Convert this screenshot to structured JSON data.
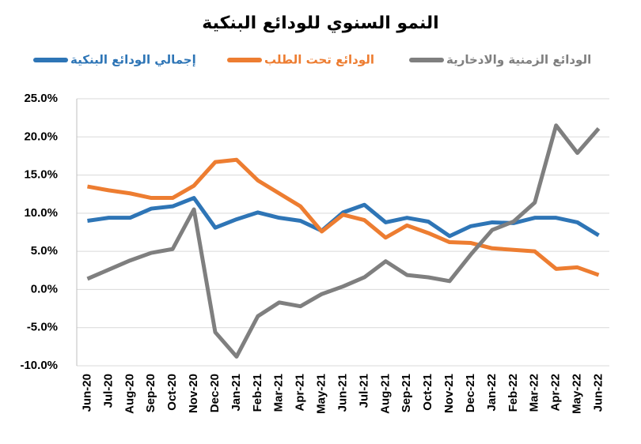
{
  "chart_data": {
    "type": "line",
    "title": "النمو السنوي للودائع البنكية",
    "categories": [
      "Jun-20",
      "Jul-20",
      "Aug-20",
      "Sep-20",
      "Oct-20",
      "Nov-20",
      "Dec-20",
      "Jan-21",
      "Feb-21",
      "Mar-21",
      "Apr-21",
      "May-21",
      "Jun-21",
      "Jul-21",
      "Aug-21",
      "Sep-21",
      "Oct-21",
      "Nov-21",
      "Dec-21",
      "Jan-22",
      "Feb-22",
      "Mar-22",
      "Apr-22",
      "May-22",
      "Jun-22"
    ],
    "series": [
      {
        "name": "إجمالي الودائع البنكية",
        "color": "#2e75b6",
        "values": [
          9.0,
          9.4,
          9.4,
          10.6,
          10.9,
          12.0,
          8.1,
          9.2,
          10.1,
          9.4,
          9.0,
          7.7,
          10.1,
          11.1,
          8.8,
          9.4,
          8.9,
          7.0,
          8.3,
          8.8,
          8.7,
          9.4,
          9.4,
          8.8,
          7.1
        ]
      },
      {
        "name": "الودائع تحت الطلب",
        "color": "#ed7d31",
        "values": [
          13.5,
          13.0,
          12.6,
          12.0,
          12.0,
          13.6,
          16.7,
          17.0,
          14.3,
          12.6,
          10.9,
          7.6,
          9.8,
          9.1,
          6.8,
          8.4,
          7.4,
          6.2,
          6.1,
          5.4,
          5.2,
          5.0,
          2.7,
          2.9,
          1.9
        ]
      },
      {
        "name": "الودائع الزمنية والادخارية",
        "color": "#7f7f7f",
        "values": [
          1.4,
          2.6,
          3.8,
          4.8,
          5.3,
          10.5,
          -5.6,
          -8.8,
          -3.5,
          -1.7,
          -2.2,
          -0.6,
          0.4,
          1.6,
          3.7,
          1.9,
          1.6,
          1.1,
          4.6,
          7.8,
          8.9,
          11.4,
          21.5,
          17.9,
          21.1
        ]
      }
    ],
    "ylim": [
      -10,
      25
    ],
    "yticks": [
      {
        "value": -10,
        "label": "-10.0%"
      },
      {
        "value": -5,
        "label": "-5.0%"
      },
      {
        "value": 0,
        "label": "0.0%"
      },
      {
        "value": 5,
        "label": "5.0%"
      },
      {
        "value": 10,
        "label": "10.0%"
      },
      {
        "value": 15,
        "label": "15.0%"
      },
      {
        "value": 20,
        "label": "20.0%"
      },
      {
        "value": 25,
        "label": "25.0%"
      }
    ],
    "grid": true
  }
}
